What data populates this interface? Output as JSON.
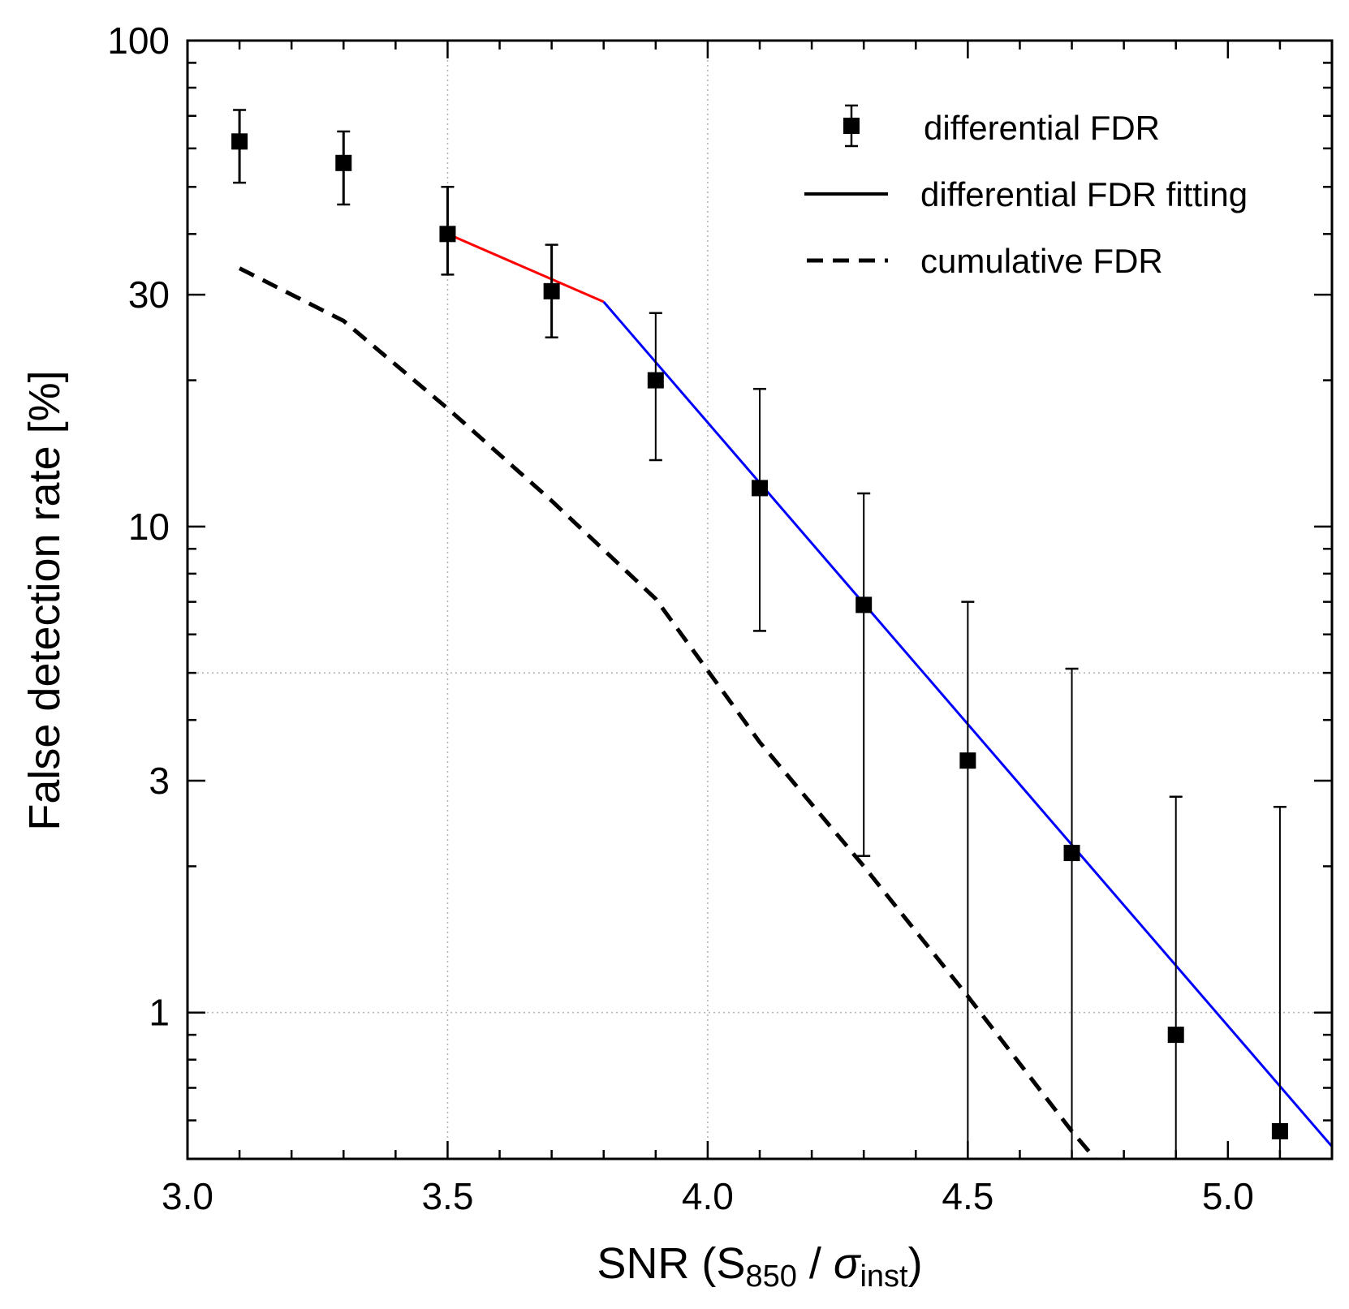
{
  "chart_data": {
    "type": "scatter",
    "title": "",
    "xlabel": {
      "main": "SNR (S",
      "sub1": "850",
      "mid": " / ",
      "sigma": "σ",
      "sub2": "inst",
      "end": ")"
    },
    "ylabel": "False detection rate [%]",
    "xlim": [
      3.0,
      5.2
    ],
    "ylim": [
      0.5,
      100
    ],
    "yscale": "log",
    "xticks": [
      3.0,
      3.5,
      4.0,
      4.5,
      5.0
    ],
    "xtick_labels": [
      "3.0",
      "3.5",
      "4.0",
      "4.5",
      "5.0"
    ],
    "yticks": [
      1,
      3,
      10,
      30,
      100
    ],
    "ytick_labels": [
      "1",
      "3",
      "10",
      "30",
      "100"
    ],
    "grid_x": [
      3.5,
      4.0
    ],
    "grid_y": [
      1,
      5
    ],
    "legend_position": "top-right",
    "series": [
      {
        "name": "differential FDR",
        "kind": "points-with-errorbars",
        "color": "#000000",
        "points": [
          {
            "x": 3.1,
            "y": 62,
            "lo": 51,
            "hi": 72
          },
          {
            "x": 3.3,
            "y": 56,
            "lo": 46,
            "hi": 65
          },
          {
            "x": 3.5,
            "y": 40,
            "lo": 33,
            "hi": 50
          },
          {
            "x": 3.7,
            "y": 30.5,
            "lo": 24.5,
            "hi": 38
          },
          {
            "x": 3.9,
            "y": 20,
            "lo": 13.7,
            "hi": 27.5
          },
          {
            "x": 4.1,
            "y": 12,
            "lo": 6.1,
            "hi": 19.2
          },
          {
            "x": 4.3,
            "y": 6.9,
            "lo": 2.1,
            "hi": 11.7
          },
          {
            "x": 4.5,
            "y": 3.3,
            "lo": 0.5,
            "hi": 7.0
          },
          {
            "x": 4.7,
            "y": 2.13,
            "lo": 0.5,
            "hi": 5.1
          },
          {
            "x": 4.9,
            "y": 0.9,
            "lo": 0.5,
            "hi": 2.78
          },
          {
            "x": 5.1,
            "y": 0.57,
            "lo": 0.5,
            "hi": 2.65
          }
        ]
      },
      {
        "name": "differential FDR fitting",
        "kind": "line",
        "segments": [
          {
            "color": "#ff0000",
            "x": [
              3.5,
              3.8
            ],
            "y": [
              40,
              29
            ]
          },
          {
            "color": "#0000ff",
            "x": [
              3.8,
              5.2
            ],
            "y": [
              29,
              0.53
            ]
          }
        ]
      },
      {
        "name": "cumulative FDR",
        "kind": "dashed-line",
        "color": "#000000",
        "x": [
          3.1,
          3.3,
          3.5,
          3.7,
          3.9,
          4.1,
          4.3,
          4.5,
          4.7,
          4.745
        ],
        "y": [
          34,
          26.5,
          17.5,
          11.3,
          7.1,
          3.6,
          2.0,
          1.08,
          0.57,
          0.5
        ]
      }
    ]
  }
}
